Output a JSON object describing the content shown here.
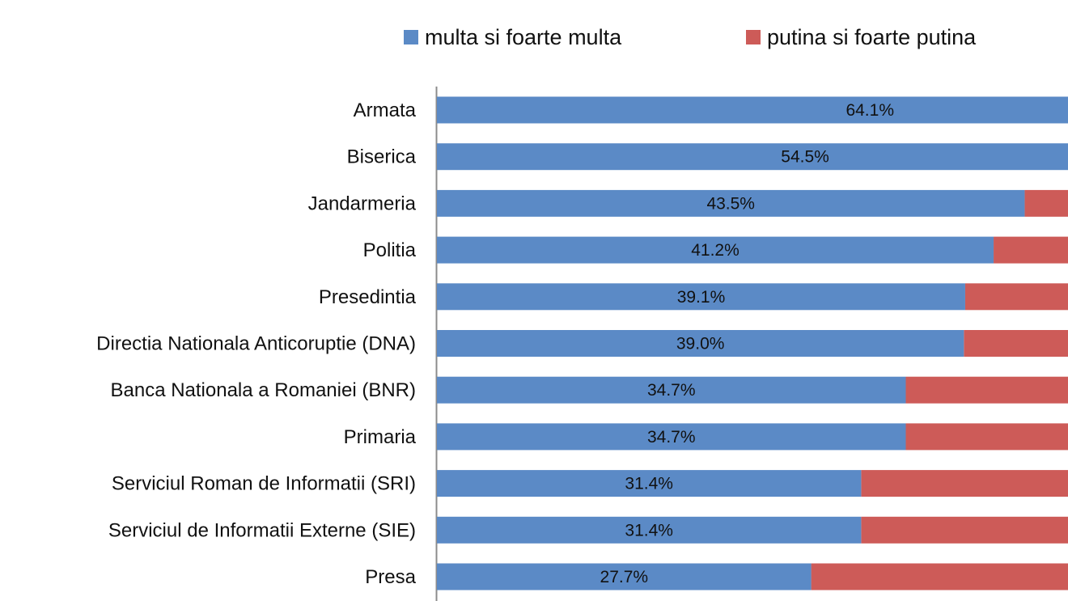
{
  "chart_data": {
    "type": "bar",
    "orientation": "horizontal",
    "stacked": true,
    "legend_position": "top",
    "grid": false,
    "categories": [
      "Armata",
      "Biserica",
      "Jandarmeria",
      "Politia",
      "Presedintia",
      "Directia Nationala Anticoruptie (DNA)",
      "Banca Nationala a Romaniei (BNR)",
      "Primaria",
      "Serviciul Roman de Informatii (SRI)",
      "Serviciul de Informatii Externe (SIE)",
      "Presa"
    ],
    "series": [
      {
        "name": "multa si foarte multa",
        "color": "#5b8ac6",
        "values": [
          64.1,
          54.5,
          43.5,
          41.2,
          39.1,
          39.0,
          34.7,
          34.7,
          31.4,
          31.4,
          27.7
        ],
        "labels": [
          "64.1%",
          "54.5%",
          "43.5%",
          "41.2%",
          "39.1%",
          "39.0%",
          "34.7%",
          "34.7%",
          "31.4%",
          "31.4%",
          "27.7%"
        ]
      },
      {
        "name": "putina si foarte putina",
        "color": "#cd5b58"
      }
    ],
    "xlim": [
      0,
      100
    ]
  }
}
